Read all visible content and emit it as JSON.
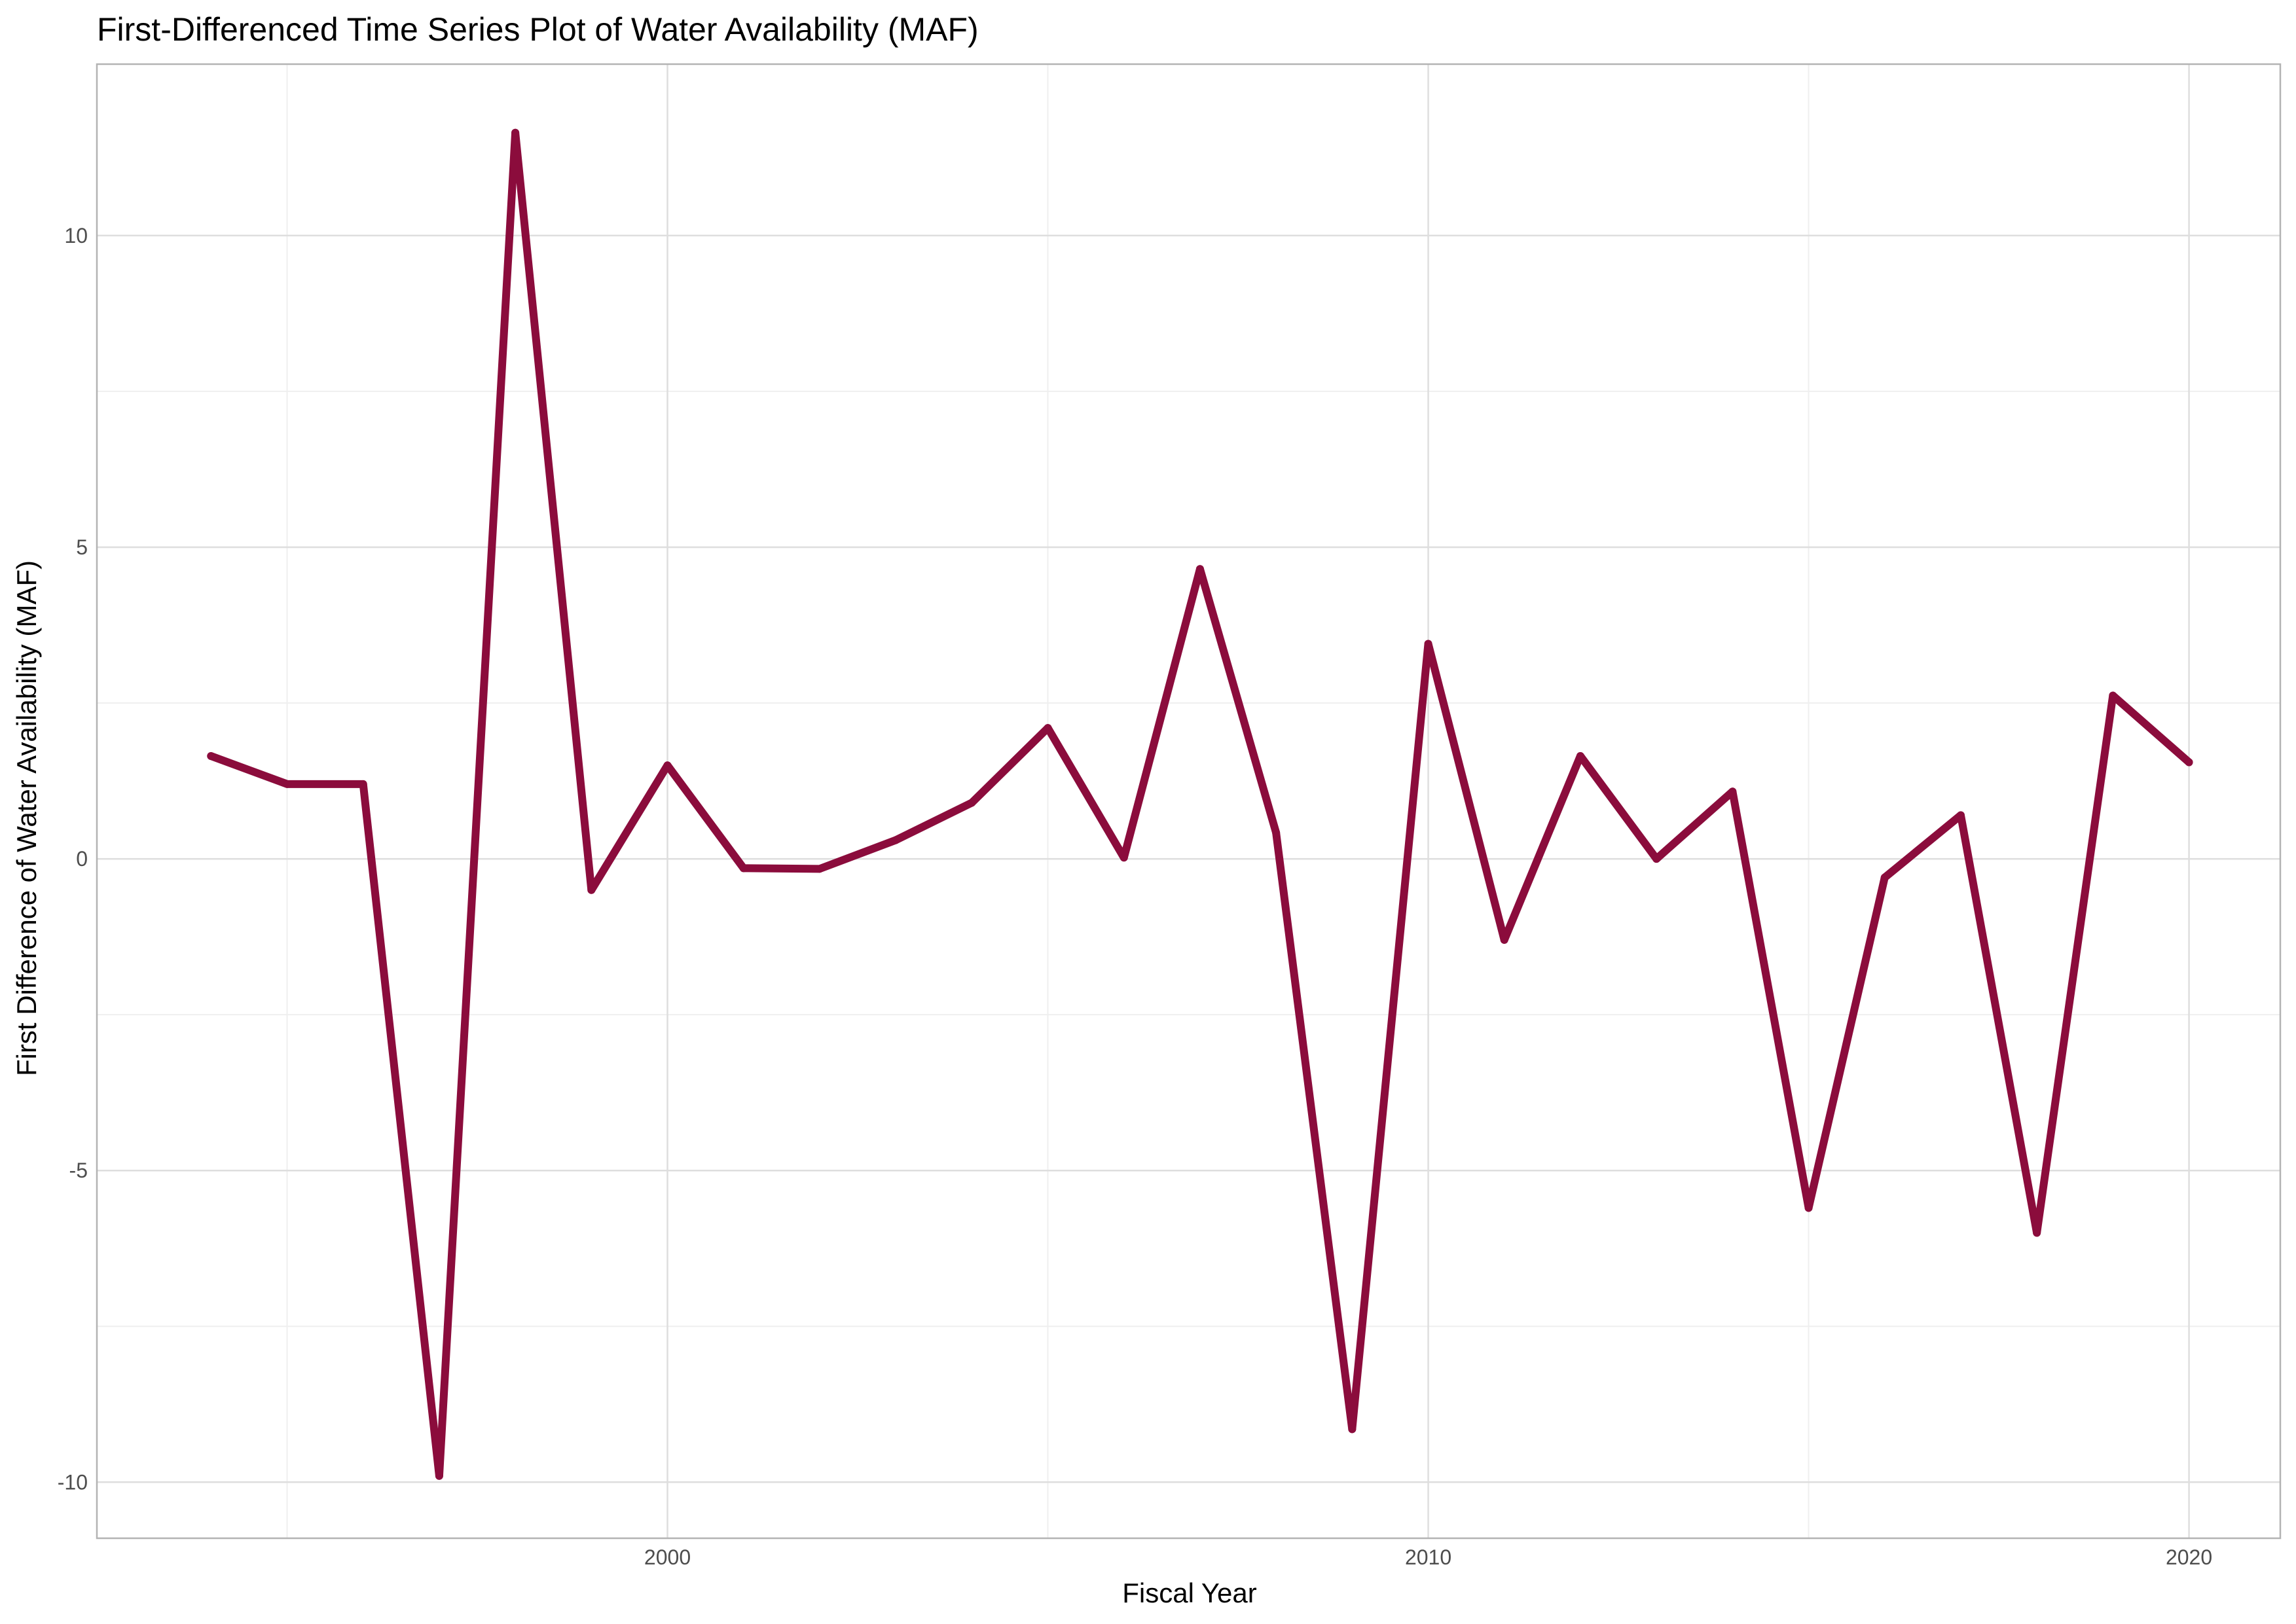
{
  "chart_data": {
    "type": "line",
    "title": "First-Differenced Time Series Plot of Water Availability (MAF)",
    "xlabel": "Fiscal Year",
    "ylabel": "First Difference of Water Availability (MAF)",
    "x": [
      1994,
      1995,
      1996,
      1997,
      1998,
      1999,
      2000,
      2001,
      2002,
      2003,
      2004,
      2005,
      2006,
      2007,
      2008,
      2009,
      2010,
      2011,
      2012,
      2013,
      2014,
      2015,
      2016,
      2017,
      2018,
      2019,
      2020
    ],
    "series": [
      {
        "values": [
          1.65,
          1.2,
          1.2,
          -9.9,
          11.65,
          -0.5,
          1.5,
          -0.15,
          -0.16,
          0.3,
          0.9,
          2.1,
          0.02,
          4.65,
          0.42,
          -9.15,
          3.45,
          -1.3,
          1.65,
          0.0,
          1.08,
          -5.6,
          -0.3,
          0.7,
          -6.0,
          2.62,
          1.55
        ]
      }
    ],
    "xlim": [
      1992.5,
      2021.2
    ],
    "ylim": [
      -10.9,
      12.75
    ],
    "x_ticks": [
      2000,
      2010,
      2020
    ],
    "x_tick_labels": [
      "2000",
      "2010",
      "2020"
    ],
    "x_minor_ticks": [
      1995,
      2005,
      2015
    ],
    "y_ticks": [
      -10,
      -5,
      0,
      5,
      10
    ],
    "y_tick_labels": [
      "-10",
      "-5",
      "0",
      "5",
      "10"
    ],
    "y_minor_ticks": [
      -7.5,
      -2.5,
      2.5,
      7.5
    ],
    "grid": true,
    "legend": "none",
    "colors": {
      "line": "#8b0c3c",
      "grid_major": "#dedede",
      "grid_minor": "#efefef",
      "panel_border": "#b3b3b3"
    }
  }
}
